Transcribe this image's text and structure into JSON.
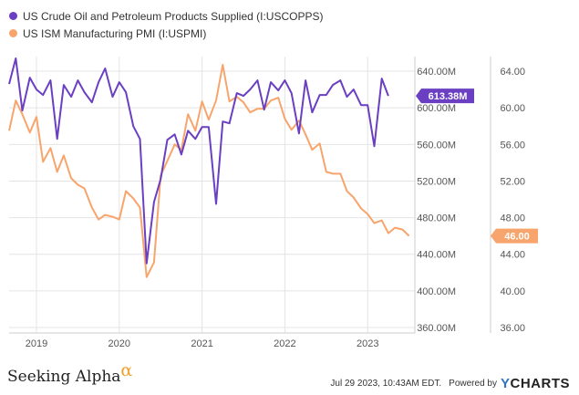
{
  "legend": {
    "series1": "US Crude Oil and Petroleum Products Supplied (I:USCOPPS)",
    "series2": "US ISM Manufacturing PMI (I:USPMI)"
  },
  "colors": {
    "series1": "#6a3fc1",
    "series2": "#f7a56c",
    "grid": "#e4e4e4",
    "axis_text": "#555555"
  },
  "footer": {
    "brand": "Seeking Alpha",
    "brand_mark": "α",
    "timestamp": "Jul 29 2023, 10:43AM EDT.",
    "powered_by": "Powered by",
    "provider": "CHARTS",
    "provider_mark": "Y"
  },
  "chart_data": {
    "type": "line",
    "x_ticks": [
      "2019",
      "2020",
      "2021",
      "2022",
      "2023"
    ],
    "x_tick_values": [
      2019.0,
      2020.0,
      2021.0,
      2022.0,
      2023.0
    ],
    "xlim": [
      2018.67,
      2023.57
    ],
    "left_axis_ticks": [
      "640.00M",
      "600.00M",
      "560.00M",
      "520.00M",
      "480.00M",
      "440.00M",
      "400.00M",
      "360.00M"
    ],
    "left_axis_values": [
      640,
      600,
      560,
      520,
      480,
      440,
      400,
      360
    ],
    "ylim_left": [
      354,
      656
    ],
    "right_axis_ticks": [
      "64.00",
      "60.00",
      "56.00",
      "52.00",
      "48.00",
      "44.00",
      "40.00",
      "36.00"
    ],
    "right_axis_values": [
      64,
      60,
      56,
      52,
      48,
      44,
      40,
      36
    ],
    "ylim_right": [
      35.4,
      65.6
    ],
    "series": [
      {
        "name": "US Crude Oil and Petroleum Products Supplied (I:USCOPPS)",
        "axis": "left",
        "unit": "M",
        "last_label": "613.38M",
        "points": [
          [
            2018.67,
            626
          ],
          [
            2018.75,
            654
          ],
          [
            2018.83,
            597
          ],
          [
            2018.92,
            633
          ],
          [
            2019.0,
            620
          ],
          [
            2019.08,
            614
          ],
          [
            2019.17,
            630
          ],
          [
            2019.25,
            566
          ],
          [
            2019.33,
            625
          ],
          [
            2019.42,
            612
          ],
          [
            2019.5,
            630
          ],
          [
            2019.58,
            617
          ],
          [
            2019.67,
            606
          ],
          [
            2019.75,
            628
          ],
          [
            2019.83,
            643
          ],
          [
            2019.92,
            612
          ],
          [
            2020.0,
            628
          ],
          [
            2020.08,
            617
          ],
          [
            2020.17,
            580
          ],
          [
            2020.25,
            566
          ],
          [
            2020.33,
            430
          ],
          [
            2020.42,
            497
          ],
          [
            2020.5,
            522
          ],
          [
            2020.58,
            565
          ],
          [
            2020.67,
            571
          ],
          [
            2020.75,
            549
          ],
          [
            2020.83,
            575
          ],
          [
            2020.92,
            566
          ],
          [
            2021.0,
            579
          ],
          [
            2021.08,
            579
          ],
          [
            2021.17,
            495
          ],
          [
            2021.25,
            585
          ],
          [
            2021.33,
            583
          ],
          [
            2021.42,
            616
          ],
          [
            2021.5,
            613
          ],
          [
            2021.58,
            620
          ],
          [
            2021.67,
            630
          ],
          [
            2021.75,
            598
          ],
          [
            2021.83,
            628
          ],
          [
            2021.92,
            619
          ],
          [
            2022.0,
            630
          ],
          [
            2022.08,
            616
          ],
          [
            2022.17,
            572
          ],
          [
            2022.25,
            630
          ],
          [
            2022.33,
            595
          ],
          [
            2022.42,
            614
          ],
          [
            2022.5,
            614
          ],
          [
            2022.58,
            625
          ],
          [
            2022.67,
            630
          ],
          [
            2022.75,
            612
          ],
          [
            2022.83,
            620
          ],
          [
            2022.92,
            603
          ],
          [
            2023.0,
            603
          ],
          [
            2023.08,
            558
          ],
          [
            2023.17,
            632
          ],
          [
            2023.25,
            613
          ]
        ]
      },
      {
        "name": "US ISM Manufacturing PMI (I:USPMI)",
        "axis": "right",
        "unit": "",
        "last_label": "46.00",
        "points": [
          [
            2018.67,
            57.5
          ],
          [
            2018.75,
            60.8
          ],
          [
            2018.83,
            59.3
          ],
          [
            2018.92,
            57.3
          ],
          [
            2019.0,
            59.0
          ],
          [
            2019.08,
            54.1
          ],
          [
            2019.17,
            55.6
          ],
          [
            2019.25,
            53.0
          ],
          [
            2019.33,
            54.8
          ],
          [
            2019.42,
            52.3
          ],
          [
            2019.5,
            51.6
          ],
          [
            2019.58,
            51.2
          ],
          [
            2019.67,
            49.1
          ],
          [
            2019.75,
            47.8
          ],
          [
            2019.83,
            48.3
          ],
          [
            2019.92,
            48.1
          ],
          [
            2020.0,
            47.8
          ],
          [
            2020.08,
            50.9
          ],
          [
            2020.17,
            50.1
          ],
          [
            2020.25,
            49.1
          ],
          [
            2020.33,
            41.5
          ],
          [
            2020.42,
            43.1
          ],
          [
            2020.5,
            52.6
          ],
          [
            2020.58,
            54.2
          ],
          [
            2020.67,
            56.0
          ],
          [
            2020.75,
            55.4
          ],
          [
            2020.83,
            59.3
          ],
          [
            2020.92,
            57.5
          ],
          [
            2021.0,
            60.7
          ],
          [
            2021.08,
            58.7
          ],
          [
            2021.17,
            60.8
          ],
          [
            2021.25,
            64.7
          ],
          [
            2021.33,
            60.7
          ],
          [
            2021.42,
            61.2
          ],
          [
            2021.5,
            60.6
          ],
          [
            2021.58,
            59.5
          ],
          [
            2021.67,
            59.9
          ],
          [
            2021.75,
            59.9
          ],
          [
            2021.83,
            60.8
          ],
          [
            2021.92,
            61.1
          ],
          [
            2022.0,
            58.8
          ],
          [
            2022.08,
            57.6
          ],
          [
            2022.17,
            58.6
          ],
          [
            2022.25,
            57.1
          ],
          [
            2022.33,
            55.4
          ],
          [
            2022.42,
            56.1
          ],
          [
            2022.5,
            53.0
          ],
          [
            2022.58,
            52.8
          ],
          [
            2022.67,
            52.8
          ],
          [
            2022.75,
            50.9
          ],
          [
            2022.83,
            50.2
          ],
          [
            2022.92,
            49.0
          ],
          [
            2023.0,
            48.4
          ],
          [
            2023.08,
            47.4
          ],
          [
            2023.17,
            47.7
          ],
          [
            2023.25,
            46.3
          ],
          [
            2023.33,
            46.9
          ],
          [
            2023.42,
            46.7
          ],
          [
            2023.5,
            46.0
          ]
        ]
      }
    ]
  }
}
